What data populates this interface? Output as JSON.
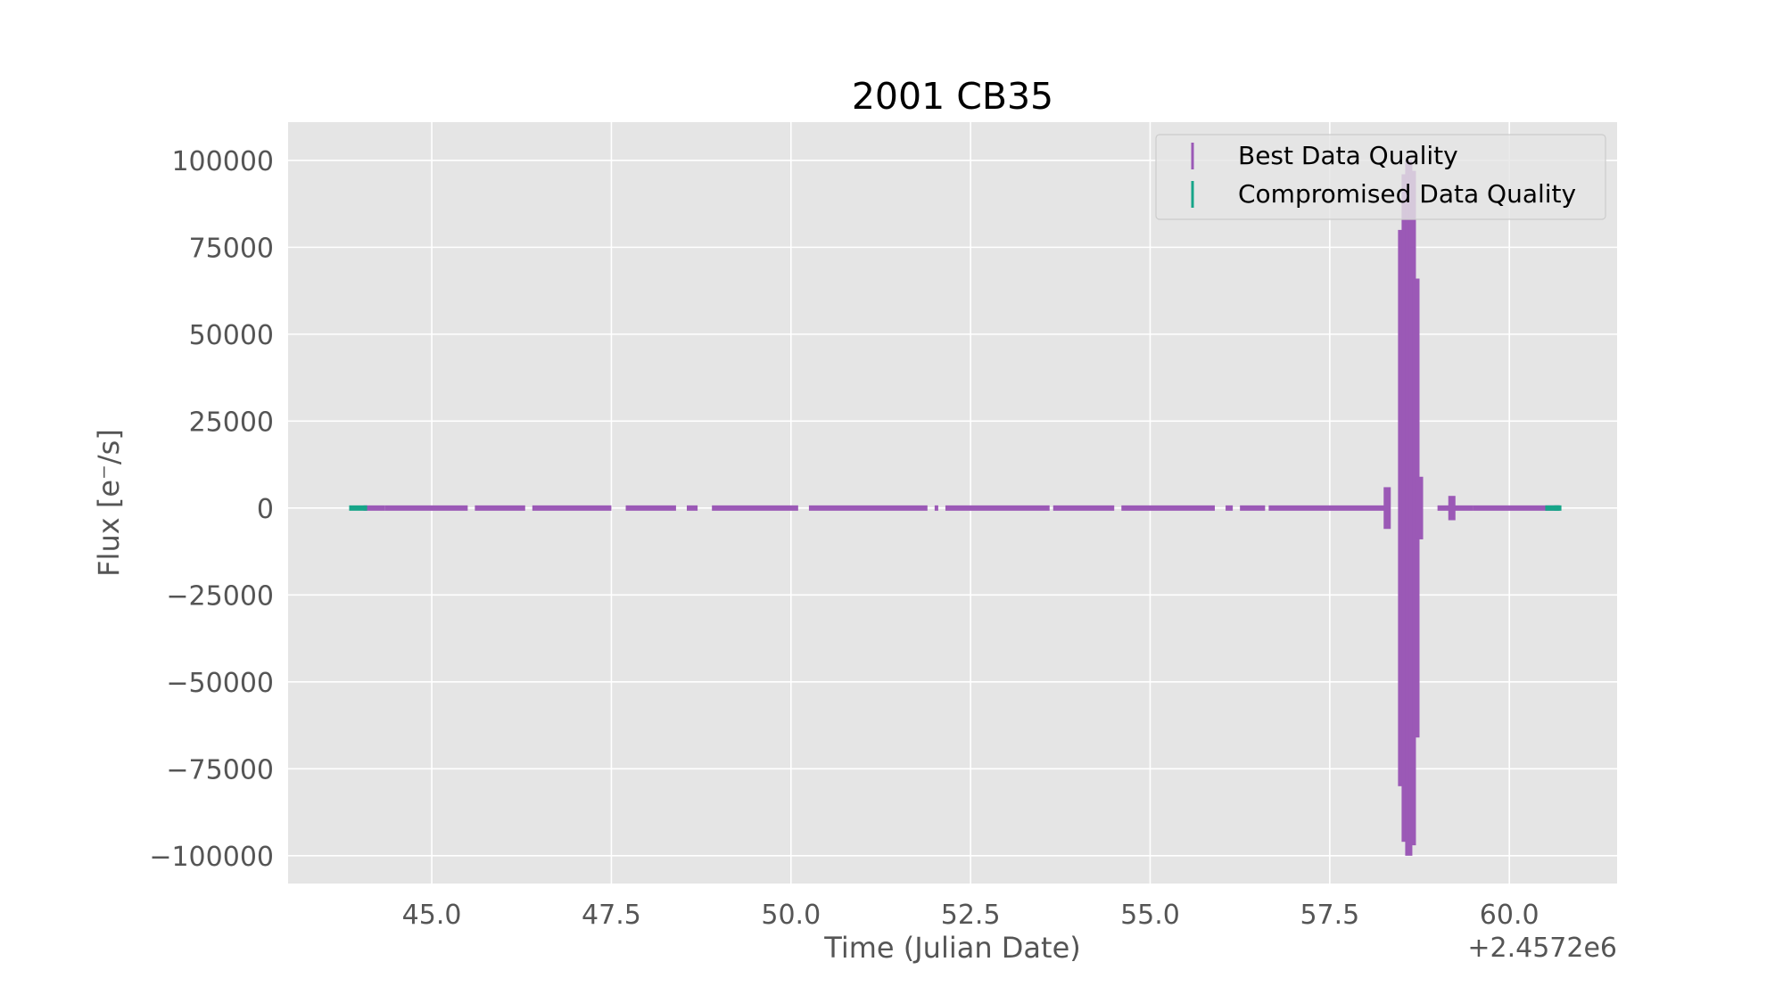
{
  "chart_data": {
    "type": "scatter",
    "title": "2001 CB35",
    "xlabel": "Time (Julian Date)",
    "ylabel": "Flux [e$^-$/s]",
    "ylabel_display": "Flux [e⁻/s]",
    "x_offset_label": "+2.4572e6",
    "xlim": [
      43.0,
      61.5
    ],
    "ylim": [
      -108000,
      111000
    ],
    "x_ticks": [
      45.0,
      47.5,
      50.0,
      52.5,
      55.0,
      57.5,
      60.0
    ],
    "x_tick_labels": [
      "45.0",
      "47.5",
      "50.0",
      "52.5",
      "55.0",
      "57.5",
      "60.0"
    ],
    "y_ticks": [
      100000,
      75000,
      50000,
      25000,
      0,
      -25000,
      -50000,
      -75000,
      -100000
    ],
    "y_tick_labels": [
      "100000",
      "75000",
      "50000",
      "25000",
      "0",
      "−25000",
      "−50000",
      "−75000",
      "−100000"
    ],
    "grid": true,
    "legend_position": "top-right",
    "series": [
      {
        "name": "Best Data Quality",
        "color": "#9b59b6",
        "segments": [
          [
            44.05,
            44.35
          ],
          [
            44.35,
            45.5
          ],
          [
            45.6,
            46.3
          ],
          [
            46.4,
            47.5
          ],
          [
            47.7,
            48.4
          ],
          [
            48.55,
            48.7
          ],
          [
            48.9,
            50.1
          ],
          [
            50.25,
            51.9
          ],
          [
            52.0,
            52.05
          ],
          [
            52.15,
            53.6
          ],
          [
            53.65,
            54.5
          ],
          [
            54.6,
            55.9
          ],
          [
            56.05,
            56.15
          ],
          [
            56.25,
            56.6
          ],
          [
            56.65,
            58.3
          ],
          [
            59.0,
            59.5
          ],
          [
            59.5,
            60.7
          ]
        ],
        "bursts": [
          {
            "x": 58.3,
            "flux": 6000
          },
          {
            "x": 58.5,
            "flux": 80000
          },
          {
            "x": 58.55,
            "flux": 96000
          },
          {
            "x": 58.6,
            "flux": 100000
          },
          {
            "x": 58.65,
            "flux": 97000
          },
          {
            "x": 58.7,
            "flux": 66000
          },
          {
            "x": 58.75,
            "flux": 9000
          },
          {
            "x": 59.2,
            "flux": 3500
          }
        ]
      },
      {
        "name": "Compromised Data Quality",
        "color": "#17a589",
        "segments": [
          [
            43.85,
            44.1
          ],
          [
            60.5,
            60.7
          ]
        ],
        "points": [
          60.65,
          60.7
        ]
      }
    ]
  }
}
